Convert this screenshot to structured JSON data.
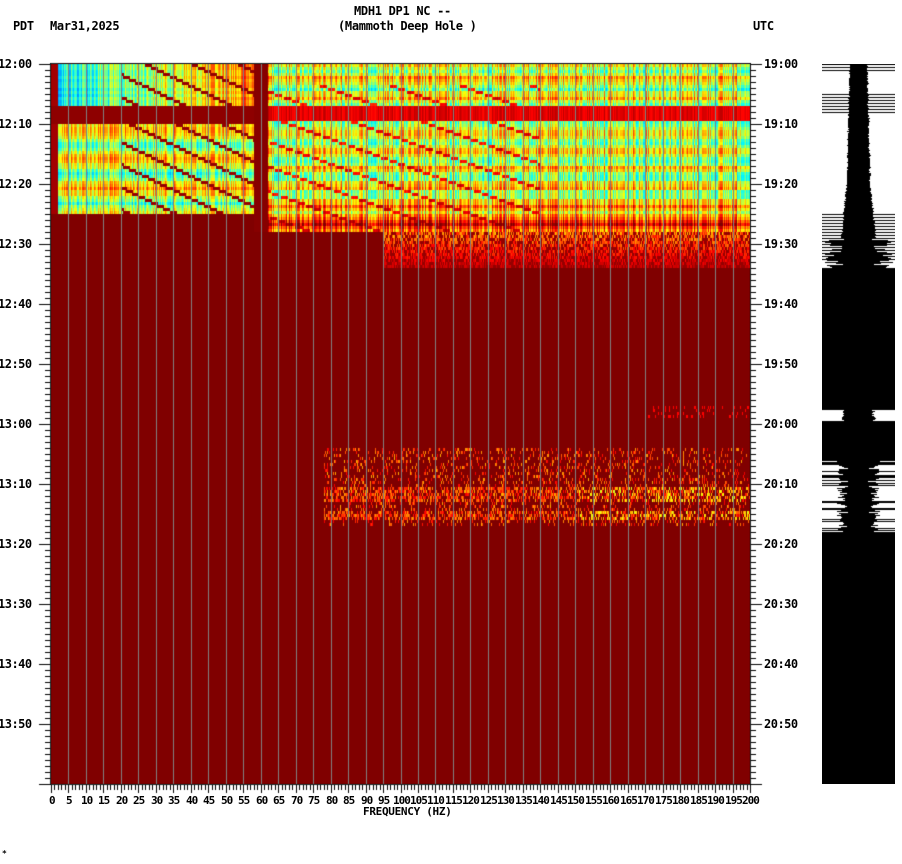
{
  "header": {
    "station_line": "MDH1 DP1 NC --",
    "location_line": "(Mammoth Deep Hole )",
    "left_tz": "PDT",
    "date": "Mar31,2025",
    "right_tz": "UTC"
  },
  "footer_mark": "*",
  "colors": {
    "background_noise": "#800000",
    "grid_line": "#808080",
    "waveform": "#000000",
    "colormap": [
      "#800000",
      "#ff0000",
      "#ff8000",
      "#ffff00",
      "#80ff80",
      "#00ffff",
      "#0080ff"
    ]
  },
  "chart_data": {
    "type": "heatmap",
    "title": "MDH1 DP1 NC -- (Mammoth Deep Hole )",
    "subtitle": "Mar31,2025",
    "xlabel": "FREQUENCY (HZ)",
    "ylabel_left": "PDT",
    "ylabel_right": "UTC",
    "xlim": [
      0,
      200
    ],
    "x_ticks": [
      0,
      5,
      10,
      15,
      20,
      25,
      30,
      35,
      40,
      45,
      50,
      55,
      60,
      65,
      70,
      75,
      80,
      85,
      90,
      95,
      100,
      105,
      110,
      115,
      120,
      125,
      130,
      135,
      140,
      145,
      150,
      155,
      160,
      165,
      170,
      175,
      180,
      185,
      190,
      195,
      200
    ],
    "x_tick_labels": [
      "0",
      "5",
      "10",
      "15",
      "20",
      "25",
      "30",
      "35",
      "40",
      "45",
      "50",
      "55",
      "60",
      "65",
      "70",
      "75",
      "80",
      "85",
      "90",
      "95",
      "100",
      "105",
      "110",
      "115",
      "120",
      "125",
      "130",
      "135",
      "140",
      "145",
      "150",
      "155",
      "160",
      "165",
      "170",
      "175",
      "180",
      "185",
      "190",
      "195",
      "200"
    ],
    "y_ticks_left": [
      "12:00",
      "12:10",
      "12:20",
      "12:30",
      "12:40",
      "12:50",
      "13:00",
      "13:10",
      "13:20",
      "13:30",
      "13:40",
      "13:50"
    ],
    "y_ticks_right": [
      "19:00",
      "19:10",
      "19:20",
      "19:30",
      "19:40",
      "19:50",
      "20:00",
      "20:10",
      "20:20",
      "20:30",
      "20:40",
      "20:50"
    ],
    "time_range_minutes": [
      0,
      120
    ],
    "grid": "vertical lines every 5 Hz",
    "regions": [
      {
        "desc": "broadband energy (blue/cyan at low freq, yellow/green higher)",
        "t_start_min": 0,
        "t_end_min": 25,
        "f_start_hz": 0,
        "f_end_hz": 58
      },
      {
        "desc": "broadband energy yellow/green/cyan",
        "t_start_min": 0,
        "t_end_min": 28,
        "f_start_hz": 60,
        "f_end_hz": 200
      },
      {
        "desc": "decaying high-frequency energy",
        "t_start_min": 28,
        "t_end_min": 34,
        "f_start_hz": 100,
        "f_end_hz": 200
      },
      {
        "desc": "quiet band (dark red) across spectrum",
        "t_start_min": 7,
        "t_end_min": 10,
        "f_start_hz": 0,
        "f_end_hz": 200
      },
      {
        "desc": "narrow 60 Hz line (dark)",
        "t_start_min": 0,
        "t_end_min": 26,
        "f_start_hz": 59,
        "f_end_hz": 61
      },
      {
        "desc": "weak event, red/orange energy",
        "t_start_min": 64,
        "t_end_min": 77,
        "f_start_hz": 80,
        "f_end_hz": 200
      },
      {
        "desc": "faint patch",
        "t_start_min": 57,
        "t_end_min": 59,
        "f_start_hz": 170,
        "f_end_hz": 200
      }
    ],
    "waveform_panel": {
      "desc": "amplitude trace; broad signal through 12:34, then saturated/clipped black, with gaps near 12:59 and 13:06-13:18",
      "clipped_from_min": 34
    }
  }
}
